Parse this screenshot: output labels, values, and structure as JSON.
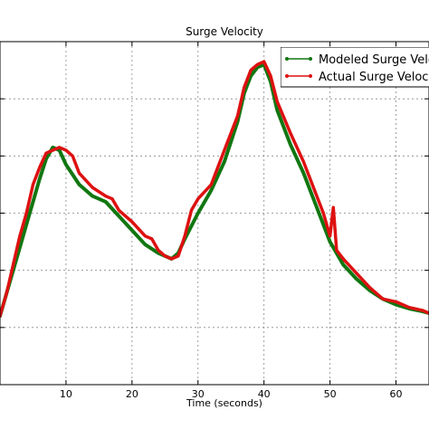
{
  "chart_data": {
    "type": "line",
    "title": "Surge Velocity",
    "xlabel": "Time (seconds)",
    "ylabel": "",
    "xlim": [
      0,
      65
    ],
    "ylim": [
      0,
      6
    ],
    "xticks": [
      10,
      20,
      30,
      40,
      50,
      60
    ],
    "grid": true,
    "legend_position": "top-right",
    "series": [
      {
        "name": "Modeled Surge Velocity",
        "color": "#117711",
        "x": [
          0,
          1,
          2,
          3,
          4,
          5,
          6,
          7,
          8,
          9,
          10,
          12,
          14,
          16,
          18,
          20,
          22,
          24,
          26,
          27,
          28,
          30,
          32,
          34,
          36,
          37,
          38,
          39,
          40,
          41,
          42,
          44,
          46,
          48,
          50,
          52,
          54,
          56,
          58,
          60,
          62,
          64,
          65
        ],
        "y": [
          1.2,
          1.6,
          2.0,
          2.4,
          2.8,
          3.2,
          3.6,
          3.95,
          4.15,
          4.1,
          3.85,
          3.5,
          3.3,
          3.2,
          2.95,
          2.7,
          2.45,
          2.3,
          2.2,
          2.3,
          2.55,
          3.0,
          3.4,
          3.9,
          4.6,
          5.1,
          5.4,
          5.55,
          5.6,
          5.3,
          4.8,
          4.2,
          3.7,
          3.1,
          2.5,
          2.1,
          1.85,
          1.65,
          1.5,
          1.4,
          1.33,
          1.28,
          1.25
        ]
      },
      {
        "name": "Actual Surge Velocity",
        "color": "#dd1111",
        "x": [
          0,
          1,
          2,
          3,
          4,
          5,
          6,
          7,
          8,
          9,
          10,
          11,
          12,
          14,
          16,
          17,
          18,
          20,
          22,
          23,
          24,
          25,
          26,
          27,
          28,
          29,
          30,
          32,
          34,
          36,
          37,
          38,
          39,
          40,
          41,
          42,
          44,
          46,
          48,
          49,
          50,
          50.5,
          51,
          52,
          54,
          56,
          58,
          60,
          62,
          64,
          65
        ],
        "y": [
          1.2,
          1.6,
          2.1,
          2.6,
          3.0,
          3.5,
          3.8,
          4.05,
          4.1,
          4.15,
          4.1,
          4.0,
          3.7,
          3.45,
          3.3,
          3.25,
          3.05,
          2.85,
          2.6,
          2.55,
          2.35,
          2.25,
          2.2,
          2.25,
          2.6,
          3.05,
          3.25,
          3.5,
          4.1,
          4.7,
          5.2,
          5.5,
          5.6,
          5.65,
          5.4,
          4.95,
          4.4,
          3.9,
          3.3,
          3.0,
          2.6,
          3.1,
          2.35,
          2.2,
          1.95,
          1.7,
          1.5,
          1.45,
          1.35,
          1.3,
          1.25
        ]
      }
    ]
  }
}
